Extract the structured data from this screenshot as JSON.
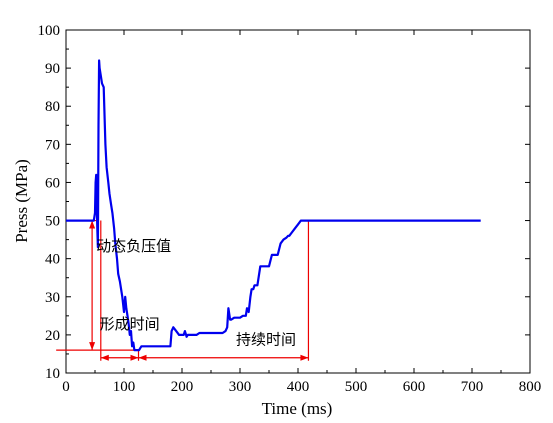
{
  "chart_data": {
    "type": "line",
    "xlabel": "Time (ms)",
    "ylabel": "Press (MPa)",
    "xlim": [
      0,
      800
    ],
    "ylim": [
      10,
      100
    ],
    "x_ticks": [
      0,
      100,
      200,
      300,
      400,
      500,
      600,
      700,
      800
    ],
    "y_ticks": [
      10,
      20,
      30,
      40,
      50,
      60,
      70,
      80,
      90,
      100
    ],
    "grid": false,
    "line_color": "#0000ee",
    "annotation_color": "#ee0000",
    "series": [
      {
        "x": [
          0,
          48,
          50,
          51,
          52,
          53,
          54,
          55,
          56,
          57,
          58,
          60,
          62,
          65,
          68,
          70,
          73,
          75,
          78,
          80,
          83,
          85,
          88,
          90,
          93,
          95,
          97,
          100,
          102,
          104,
          106,
          108,
          110,
          112,
          114,
          116,
          118,
          120,
          122,
          124,
          125,
          126,
          128,
          130,
          135,
          140,
          145,
          150,
          155,
          160,
          165,
          170,
          175,
          180,
          182,
          185,
          190,
          195,
          200,
          203,
          205,
          207,
          208,
          210,
          215,
          220,
          225,
          230,
          240,
          250,
          260,
          270,
          275,
          278,
          280,
          283,
          285,
          290,
          295,
          300,
          305,
          310,
          312,
          315,
          318,
          320,
          323,
          325,
          330,
          335,
          340,
          345,
          350,
          355,
          360,
          365,
          370,
          375,
          380,
          383,
          385,
          390,
          395,
          400,
          405,
          410,
          415,
          420,
          450,
          500,
          550,
          600,
          650,
          700,
          715
        ],
        "y": [
          50,
          50,
          52,
          60,
          62,
          55,
          48,
          43,
          75,
          92,
          90,
          88,
          86,
          85,
          70,
          64,
          60,
          57,
          54,
          52,
          48,
          44,
          40,
          36,
          34,
          32,
          30,
          26,
          30,
          27,
          25,
          23,
          20,
          21,
          17,
          18,
          16,
          16,
          16,
          16,
          16,
          16,
          16.5,
          17,
          17,
          17,
          17,
          17,
          17,
          17,
          17,
          17,
          17,
          17,
          21,
          22,
          21,
          20,
          20,
          20,
          21,
          20,
          19.5,
          20,
          20,
          20,
          20,
          20.5,
          20.5,
          20.5,
          20.5,
          20.5,
          21,
          22,
          27,
          24,
          24,
          24.5,
          24.5,
          24.5,
          25,
          25,
          27,
          26,
          30,
          32,
          32,
          33,
          33,
          38,
          38,
          38,
          38,
          41,
          41,
          41,
          44,
          45,
          45.5,
          46,
          46,
          47,
          48,
          49,
          50,
          50,
          50,
          50,
          50,
          50,
          50,
          50,
          50,
          50,
          50
        ]
      }
    ],
    "annotations": [
      {
        "text": "动态负压值",
        "x": 52,
        "y": 42
      },
      {
        "text": "形成时间",
        "x": 58,
        "y": 21.5
      },
      {
        "text": "持续时间",
        "x": 293,
        "y": 17.5
      }
    ],
    "markers": {
      "ref_value": 50,
      "peak_value": 16,
      "start_time": 60,
      "trough_time": 125,
      "end_time": 418,
      "ref_line_x_end": 52,
      "arrow_x": 45,
      "span_y": 14
    }
  }
}
